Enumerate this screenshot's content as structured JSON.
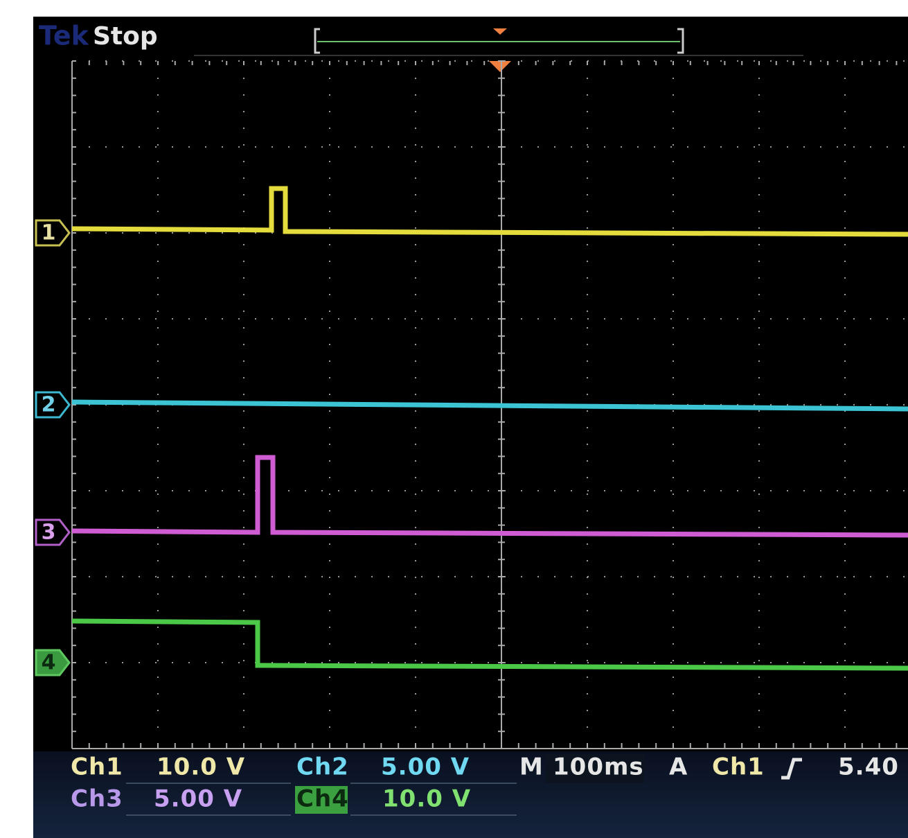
{
  "header": {
    "brand": "Tek",
    "status": "Stop"
  },
  "markers": [
    "1",
    "2",
    "3",
    "4"
  ],
  "readouts": {
    "ch1": {
      "label": "Ch1",
      "scale": "10.0 V"
    },
    "ch2": {
      "label": "Ch2",
      "scale": "5.00 V"
    },
    "ch3": {
      "label": "Ch3",
      "scale": "5.00 V"
    },
    "ch4": {
      "label": "Ch4",
      "scale": "10.0 V"
    },
    "timebase": {
      "label": "M",
      "value": "100ms"
    },
    "trigger": {
      "label": "A",
      "source": "Ch1",
      "level": "5.40"
    }
  }
}
